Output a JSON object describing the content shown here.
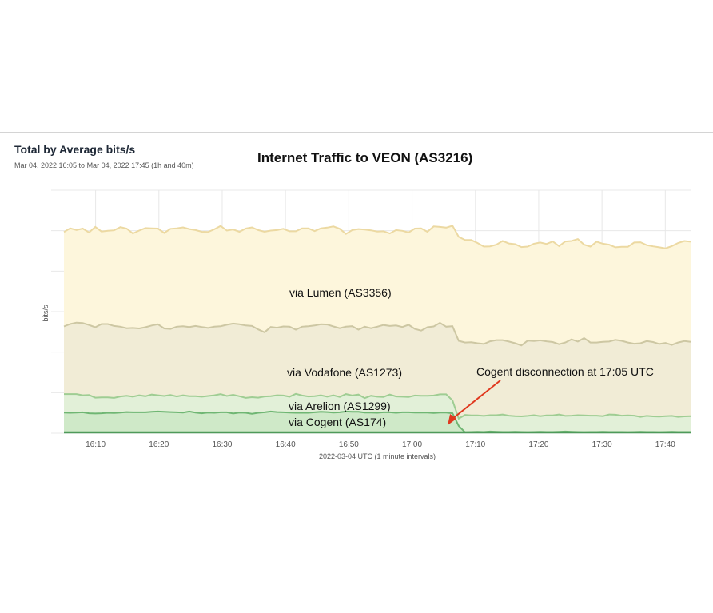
{
  "panel": {
    "title": "Total by Average bits/s",
    "range": "Mar 04, 2022 16:05 to Mar 04, 2022 17:45 (1h and 40m)"
  },
  "colors": {
    "lumen_fill": "#fdf6dc",
    "lumen_line": "#ecd9a2",
    "vodafone_fill": "#f1ecd6",
    "vodafone_line": "#cdc7a3",
    "arelion_fill": "#e2f0d8",
    "arelion_line": "#9fcd93",
    "cogent_fill": "#cfe9c8",
    "cogent_line": "#6fb673",
    "base_line": "#4e9a5a",
    "grid": "#e8e8e8",
    "arrow": "#e0391f"
  },
  "chart_data": {
    "type": "area",
    "stacked": true,
    "title": "Internet Traffic to VEON (AS3216)",
    "xlabel": "2022-03-04 UTC (1 minute intervals)",
    "ylabel": "bits/s",
    "x_ticks": [
      "16:10",
      "16:20",
      "16:30",
      "16:40",
      "16:50",
      "17:00",
      "17:10",
      "17:20",
      "17:30",
      "17:40"
    ],
    "x_range": [
      "16:05",
      "17:44"
    ],
    "ylim": [
      0,
      100
    ],
    "grid": true,
    "series": [
      {
        "name": "via Cogent (AS174)",
        "stack_top": [
          8.5,
          8.4,
          8.5,
          8.6,
          8.2,
          8.1,
          8.2,
          8.4,
          8.3,
          8.5,
          8.7,
          8.6,
          8.6,
          8.6,
          8.8,
          8.9,
          8.8,
          8.7,
          8.6,
          8.5,
          8.9,
          8.5,
          8.2,
          8.5,
          8.4,
          8.6,
          8.6,
          8.1,
          8.5,
          8.4,
          8.0,
          8.4,
          8.6,
          8.9,
          8.7,
          8.6,
          8.5,
          8.4,
          8.4,
          8.4,
          8.6,
          8.8,
          8.7,
          8.5,
          8.6,
          8.9,
          8.8,
          8.8,
          8.5,
          8.5,
          8.4,
          8.6,
          8.6,
          8.4,
          8.6,
          8.6,
          8.5,
          8.5,
          8.5,
          8.3,
          8.5,
          8.5,
          8.2,
          3.0,
          0.4,
          0.5,
          0.6,
          0.5,
          0.7,
          0.6,
          0.5,
          0.5,
          0.6,
          0.5,
          0.4,
          0.5,
          0.6,
          0.5,
          0.5,
          0.6,
          0.7,
          0.6,
          0.5,
          0.4,
          0.5,
          0.5,
          0.6,
          0.5,
          0.5,
          0.5,
          0.4,
          0.5,
          0.6,
          0.5,
          0.5,
          0.4,
          0.5,
          0.6,
          0.5,
          0.5,
          0.5
        ]
      },
      {
        "name": "via Arelion (AS1299)",
        "stack_top": [
          16.1,
          16.1,
          16.1,
          15.6,
          15.7,
          14.6,
          14.7,
          14.7,
          14.5,
          15.1,
          15.4,
          15.0,
          15.6,
          15.2,
          15.9,
          15.6,
          15.3,
          15.7,
          15.1,
          15.6,
          15.2,
          15.2,
          15.0,
          15.3,
          15.6,
          16.1,
          15.3,
          15.8,
          15.2,
          14.5,
          14.8,
          14.6,
          15.1,
          15.2,
          15.6,
          15.5,
          15.0,
          16.2,
          15.5,
          15.1,
          15.2,
          15.6,
          15.0,
          15.6,
          14.9,
          16.1,
          15.5,
          15.9,
          14.4,
          15.4,
          15.0,
          14.9,
          15.9,
          15.1,
          15.0,
          14.9,
          15.5,
          15.4,
          15.4,
          15.5,
          16.0,
          16.0,
          13.5,
          6.0,
          7.5,
          7.3,
          7.3,
          7.1,
          7.4,
          7.4,
          7.7,
          7.2,
          7.0,
          6.9,
          7.1,
          7.4,
          7.0,
          7.3,
          7.3,
          7.7,
          7.1,
          7.2,
          7.4,
          7.3,
          7.2,
          7.2,
          7.0,
          7.7,
          7.6,
          7.2,
          7.3,
          7.2,
          6.7,
          7.1,
          6.9,
          6.8,
          7.0,
          7.1,
          6.7,
          6.9,
          7.0
        ]
      },
      {
        "name": "via Vodafone (AS1273)",
        "stack_top": [
          43.9,
          44.9,
          45.5,
          45.3,
          44.5,
          43.6,
          44.9,
          44.9,
          44.1,
          43.8,
          43.2,
          43.3,
          43.1,
          43.6,
          44.3,
          44.8,
          43.1,
          42.9,
          43.8,
          44.0,
          43.7,
          44.1,
          43.7,
          43.3,
          43.8,
          44.0,
          44.6,
          45.1,
          44.8,
          44.3,
          44.1,
          42.7,
          41.5,
          43.7,
          43.4,
          43.9,
          43.8,
          42.6,
          43.8,
          44.0,
          44.3,
          44.8,
          44.7,
          43.9,
          43.2,
          43.8,
          44.0,
          42.6,
          43.8,
          43.2,
          43.8,
          44.5,
          44.1,
          44.3,
          43.7,
          44.6,
          42.9,
          42.2,
          43.6,
          43.9,
          45.4,
          43.8,
          44.0,
          38.0,
          37.3,
          37.4,
          37.0,
          36.7,
          37.8,
          38.3,
          38.3,
          37.7,
          37.0,
          36.1,
          38.1,
          37.9,
          38.2,
          37.8,
          37.5,
          36.6,
          37.3,
          38.6,
          37.7,
          39.1,
          37.3,
          37.3,
          37.6,
          37.7,
          38.4,
          38.0,
          37.3,
          36.8,
          37.0,
          37.9,
          37.5,
          36.7,
          37.1,
          36.3,
          37.3,
          37.9,
          37.6
        ]
      },
      {
        "name": "via Lumen (AS3356)",
        "stack_top": [
          82.8,
          84.3,
          83.6,
          84.2,
          82.6,
          84.9,
          83.0,
          83.3,
          83.5,
          84.8,
          84.2,
          82.2,
          83.4,
          84.4,
          84.3,
          84.2,
          82.4,
          84.1,
          84.3,
          84.7,
          84.0,
          83.6,
          82.9,
          82.8,
          83.9,
          85.3,
          83.4,
          83.8,
          82.9,
          84.2,
          84.7,
          83.6,
          82.9,
          83.4,
          83.6,
          84.1,
          83.1,
          83.1,
          84.3,
          84.3,
          83.2,
          84.3,
          84.6,
          85.1,
          84.1,
          82.0,
          83.6,
          84.0,
          83.8,
          83.5,
          83.0,
          83.1,
          82.2,
          83.6,
          83.3,
          82.6,
          84.2,
          84.3,
          82.9,
          85.1,
          84.9,
          84.6,
          85.4,
          80.8,
          79.5,
          79.5,
          78.3,
          76.8,
          76.9,
          77.6,
          79.1,
          78.1,
          77.8,
          76.6,
          76.8,
          78.0,
          78.5,
          77.9,
          78.9,
          77.0,
          78.9,
          79.1,
          79.9,
          77.6,
          76.8,
          78.8,
          78.0,
          77.6,
          76.5,
          76.7,
          76.7,
          78.5,
          78.6,
          77.4,
          76.9,
          76.5,
          76.1,
          77.0,
          78.3,
          79.1,
          78.8
        ]
      }
    ],
    "annotations": [
      {
        "text": "Cogent disconnection at 17:05 UTC",
        "points_to": "17:06"
      }
    ],
    "series_labels": [
      "via Lumen (AS3356)",
      "via Vodafone (AS1273)",
      "via Arelion (AS1299)",
      "via Cogent (AS174)"
    ]
  }
}
